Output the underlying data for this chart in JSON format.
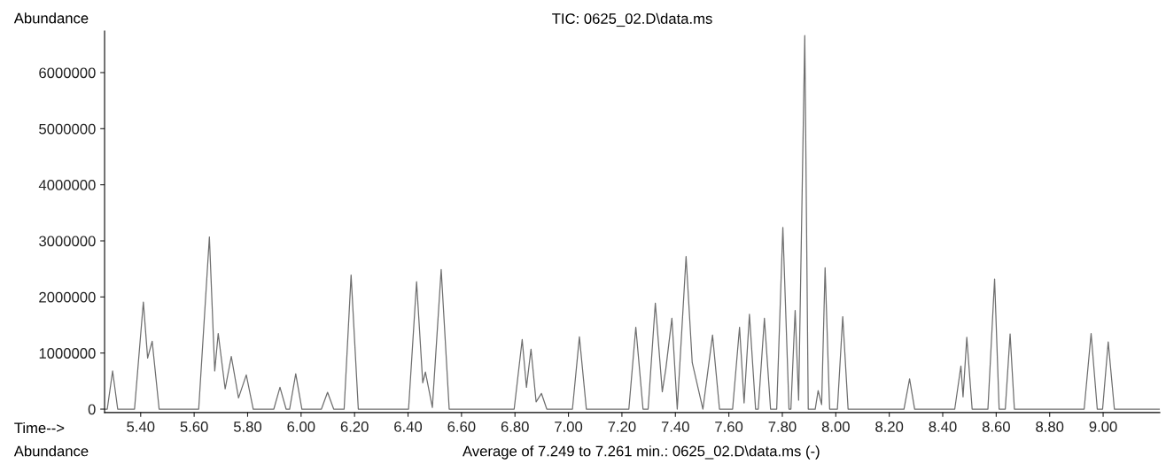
{
  "chart_data": {
    "type": "line",
    "title": "TIC: 0625_02.D\\data.ms",
    "xlabel": "Time-->",
    "ylabel": "Abundance",
    "annotations": [
      "Abundance",
      "Average of 7.249 to 7.261 min.: 0625_02.D\\data.ms (-)"
    ],
    "series": [
      {
        "color": "#6e6e6e",
        "x": [
          5.265,
          5.275,
          5.295,
          5.314,
          5.377,
          5.41,
          5.426,
          5.443,
          5.469,
          5.617,
          5.657,
          5.677,
          5.69,
          5.716,
          5.739,
          5.766,
          5.795,
          5.821,
          5.898,
          5.921,
          5.944,
          5.957,
          5.98,
          6.003,
          6.076,
          6.099,
          6.122,
          6.161,
          6.187,
          6.214,
          6.402,
          6.432,
          6.455,
          6.465,
          6.491,
          6.524,
          6.554,
          6.797,
          6.827,
          6.843,
          6.86,
          6.879,
          6.899,
          6.919,
          7.015,
          7.041,
          7.067,
          7.226,
          7.252,
          7.279,
          7.298,
          7.325,
          7.351,
          7.364,
          7.387,
          7.407,
          7.44,
          7.463,
          7.503,
          7.539,
          7.565,
          7.614,
          7.64,
          7.657,
          7.677,
          7.7,
          7.71,
          7.733,
          7.756,
          7.779,
          7.802,
          7.825,
          7.832,
          7.848,
          7.861,
          7.884,
          7.897,
          7.923,
          7.934,
          7.947,
          7.96,
          7.977,
          8.006,
          8.026,
          8.046,
          8.255,
          8.276,
          8.295,
          8.445,
          8.468,
          8.476,
          8.49,
          8.51,
          8.569,
          8.594,
          8.611,
          8.634,
          8.652,
          8.668,
          8.929,
          8.955,
          8.978,
          8.998,
          9.019,
          9.042,
          9.212
        ],
        "values": [
          0,
          0,
          680000,
          0,
          0,
          1910000,
          910000,
          1210000,
          0,
          0,
          3070000,
          680000,
          1350000,
          360000,
          940000,
          200000,
          610000,
          0,
          0,
          390000,
          0,
          0,
          630000,
          0,
          0,
          300000,
          0,
          0,
          2390000,
          0,
          0,
          2270000,
          470000,
          660000,
          30000,
          2490000,
          0,
          0,
          1240000,
          390000,
          1070000,
          130000,
          280000,
          0,
          0,
          1290000,
          0,
          0,
          1460000,
          0,
          0,
          1890000,
          310000,
          710000,
          1620000,
          0,
          2720000,
          830000,
          0,
          1320000,
          0,
          0,
          1460000,
          110000,
          1690000,
          0,
          0,
          1620000,
          0,
          0,
          3240000,
          0,
          0,
          1760000,
          160000,
          6660000,
          0,
          0,
          330000,
          80000,
          2520000,
          0,
          0,
          1650000,
          0,
          0,
          540000,
          0,
          0,
          770000,
          220000,
          1280000,
          0,
          0,
          2320000,
          0,
          0,
          1340000,
          0,
          0,
          1350000,
          0,
          0,
          1200000,
          0,
          0
        ]
      }
    ],
    "xlim": [
      5.265,
      9.212
    ],
    "ylim": [
      -60000,
      6740000
    ],
    "xticks": [
      {
        "value": 5.4,
        "label": "5.40"
      },
      {
        "value": 5.6,
        "label": "5.60"
      },
      {
        "value": 5.8,
        "label": "5.80"
      },
      {
        "value": 6.0,
        "label": "6.00"
      },
      {
        "value": 6.2,
        "label": "6.20"
      },
      {
        "value": 6.4,
        "label": "6.40"
      },
      {
        "value": 6.6,
        "label": "6.60"
      },
      {
        "value": 6.8,
        "label": "6.80"
      },
      {
        "value": 7.0,
        "label": "7.00"
      },
      {
        "value": 7.2,
        "label": "7.20"
      },
      {
        "value": 7.4,
        "label": "7.40"
      },
      {
        "value": 7.6,
        "label": "7.60"
      },
      {
        "value": 7.8,
        "label": "7.80"
      },
      {
        "value": 8.0,
        "label": "8.00"
      },
      {
        "value": 8.2,
        "label": "8.20"
      },
      {
        "value": 8.4,
        "label": "8.40"
      },
      {
        "value": 8.6,
        "label": "8.60"
      },
      {
        "value": 8.8,
        "label": "8.80"
      },
      {
        "value": 9.0,
        "label": "9.00"
      }
    ],
    "yticks": [
      0,
      1000000,
      2000000,
      3000000,
      4000000,
      5000000,
      6000000
    ],
    "grid": false,
    "legend": false,
    "marker": "none",
    "line_style": "solid"
  }
}
